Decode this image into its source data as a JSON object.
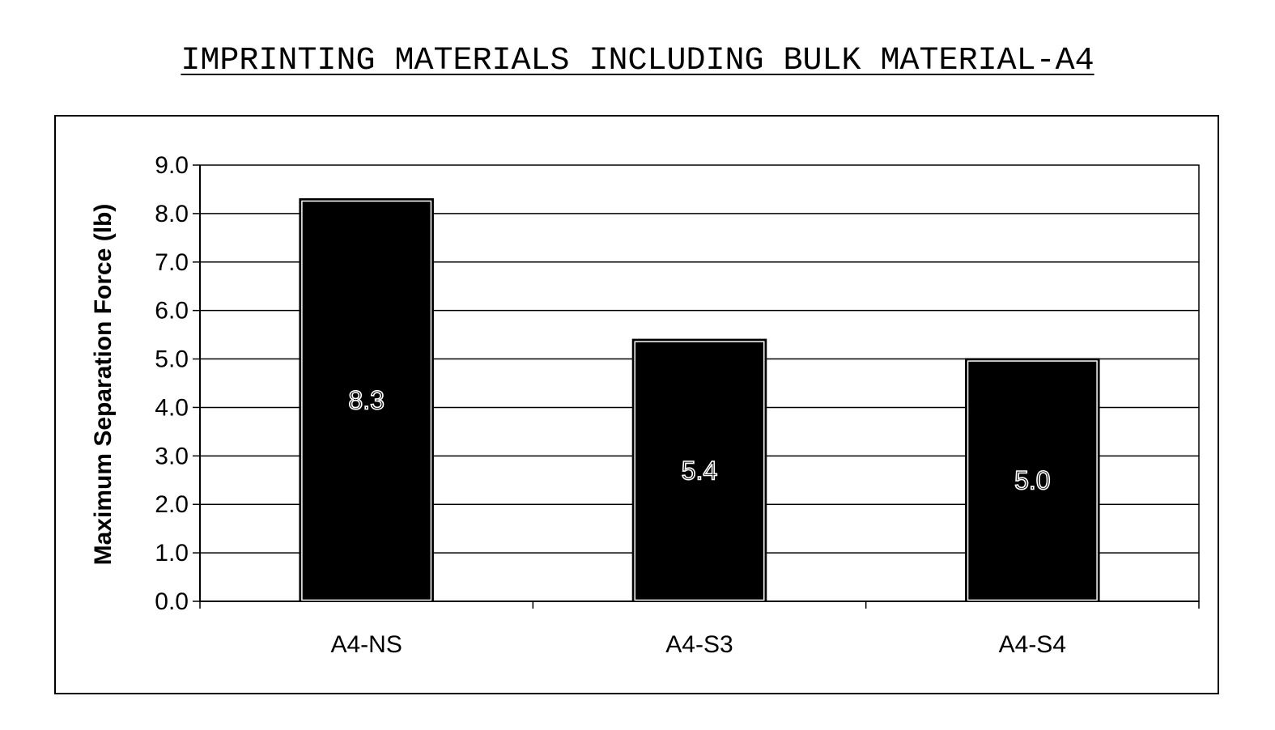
{
  "chart_data": {
    "type": "bar",
    "title": "IMPRINTING MATERIALS INCLUDING BULK MATERIAL-A4",
    "xlabel": "",
    "ylabel": "Maximum Separation Force (lb)",
    "categories": [
      "A4-NS",
      "A4-S3",
      "A4-S4"
    ],
    "values": [
      8.3,
      5.4,
      5.0
    ],
    "data_labels": [
      "8.3",
      "5.4",
      "5.0"
    ],
    "ylim": [
      0,
      9
    ],
    "yticks": [
      "0.0",
      "1.0",
      "2.0",
      "3.0",
      "4.0",
      "5.0",
      "6.0",
      "7.0",
      "8.0",
      "9.0"
    ],
    "grid": true,
    "legend": "none",
    "colors": {
      "bar_fill": "#000000",
      "bar_outline": "#ffffff",
      "grid": "#000000",
      "label_text": "#ffffff"
    }
  }
}
